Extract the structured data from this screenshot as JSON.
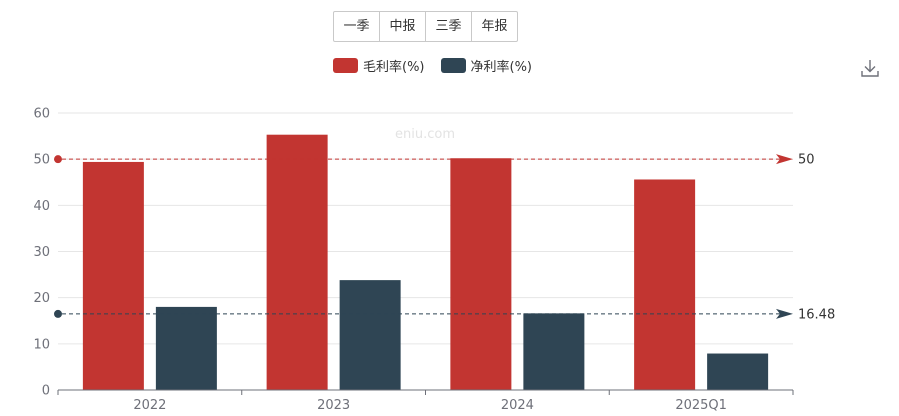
{
  "tabs": [
    "一季",
    "中报",
    "三季",
    "年报"
  ],
  "watermark": "eniu.com",
  "colors": {
    "gross": "#c23531",
    "net": "#2f4554",
    "axis": "#6e7079",
    "grid": "#e6e6e6"
  },
  "icons": {
    "download": "download-icon"
  },
  "chart_data": {
    "type": "bar",
    "categories": [
      "2022",
      "2023",
      "2024",
      "2025Q1"
    ],
    "series": [
      {
        "name": "毛利率(%)",
        "color": "#c23531",
        "values": [
          49.4,
          55.3,
          50.2,
          45.6
        ]
      },
      {
        "name": "净利率(%)",
        "color": "#2f4554",
        "values": [
          18.0,
          23.8,
          16.6,
          7.9
        ]
      }
    ],
    "ylim": [
      0,
      60
    ],
    "yticks": [
      0,
      10,
      20,
      30,
      40,
      50,
      60
    ],
    "grid": true,
    "legend": "top-center",
    "mark_lines": [
      {
        "series": "毛利率(%)",
        "value": 50,
        "label": "50"
      },
      {
        "series": "净利率(%)",
        "value": 16.48,
        "label": "16.48"
      }
    ]
  }
}
